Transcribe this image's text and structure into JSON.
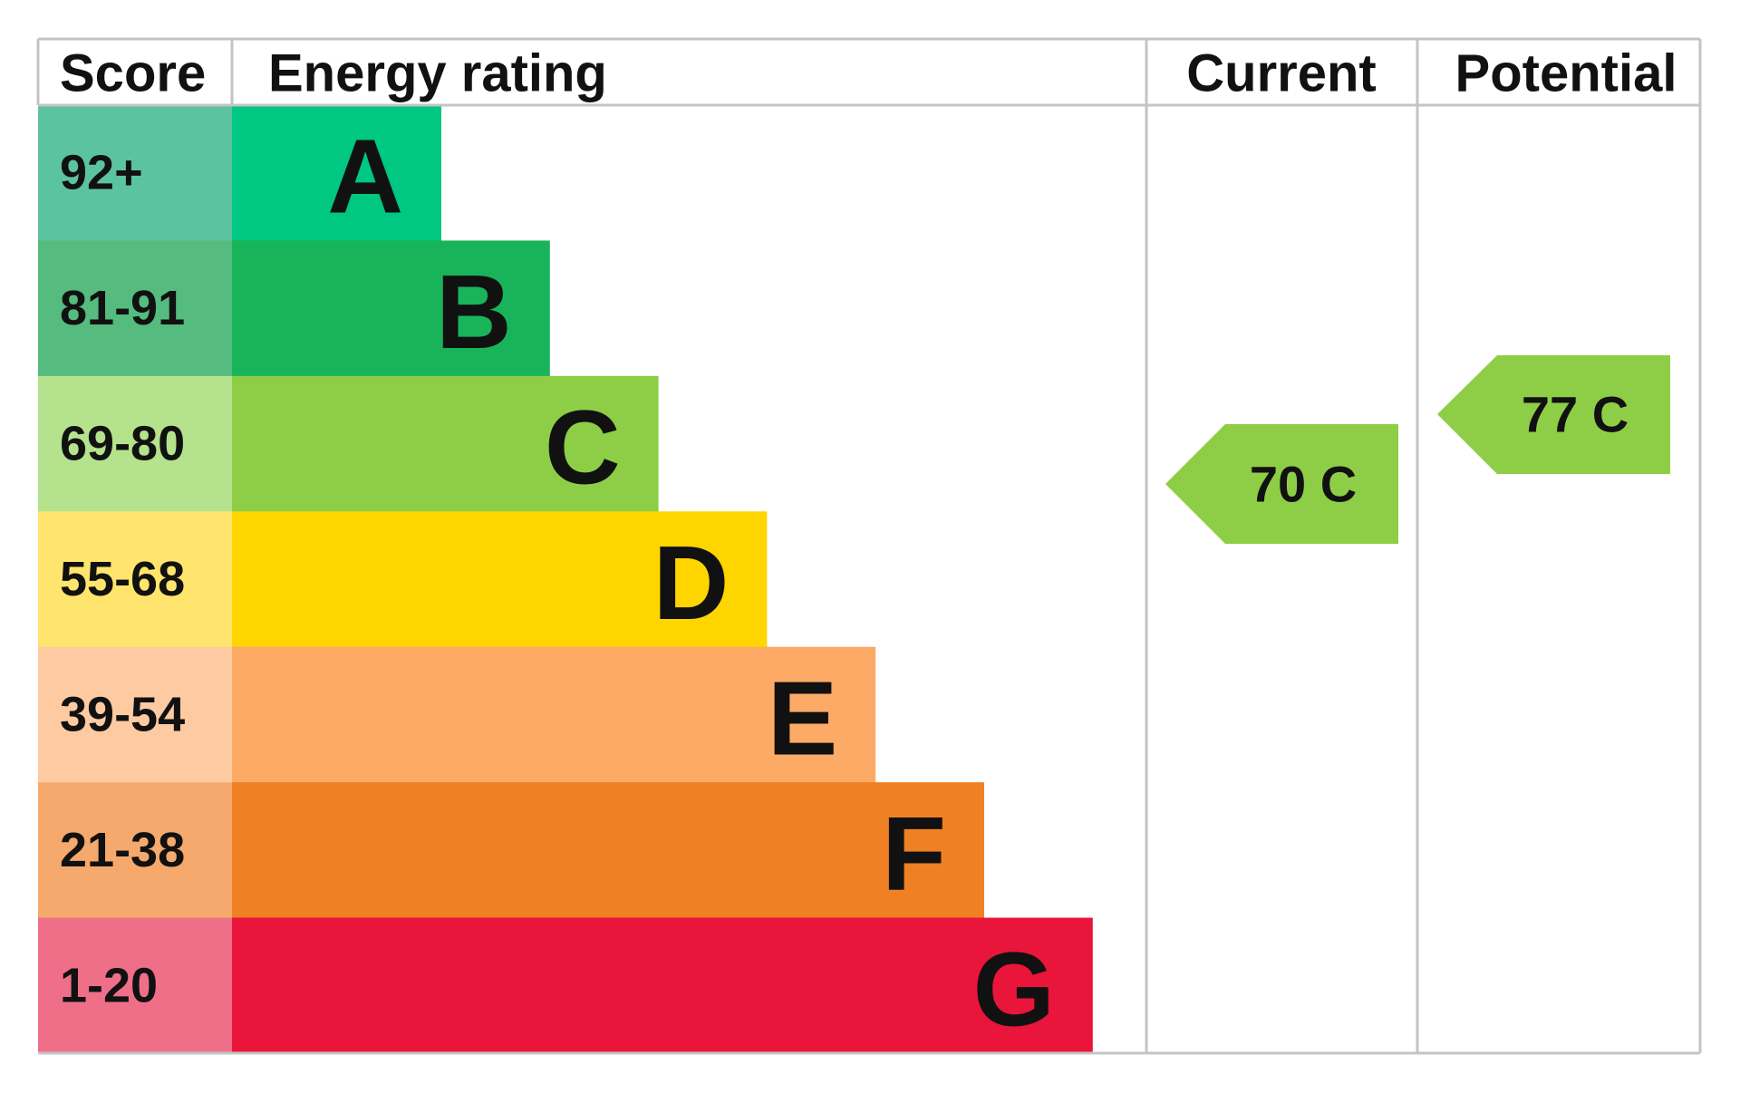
{
  "header": {
    "score": "Score",
    "energy_rating": "Energy rating",
    "current": "Current",
    "potential": "Potential"
  },
  "bands": [
    {
      "score": "92+",
      "letter": "A",
      "bar_color": "#00c781",
      "score_color": "#5cc3a0"
    },
    {
      "score": "81-91",
      "letter": "B",
      "bar_color": "#19b459",
      "score_color": "#55bb7f"
    },
    {
      "score": "69-80",
      "letter": "C",
      "bar_color": "#8dce46",
      "score_color": "#b5e28c"
    },
    {
      "score": "55-68",
      "letter": "D",
      "bar_color": "#ffd500",
      "score_color": "#ffe56d"
    },
    {
      "score": "39-54",
      "letter": "E",
      "bar_color": "#fcaa65",
      "score_color": "#fdcaa2"
    },
    {
      "score": "21-38",
      "letter": "F",
      "bar_color": "#ef8023",
      "score_color": "#f5a96c"
    },
    {
      "score": "1-20",
      "letter": "G",
      "bar_color": "#e9153b",
      "score_color": "#ef6f89"
    }
  ],
  "current": {
    "label": "70 C",
    "color": "#8dce46"
  },
  "potential": {
    "label": "77 C",
    "color": "#8dce46"
  }
}
